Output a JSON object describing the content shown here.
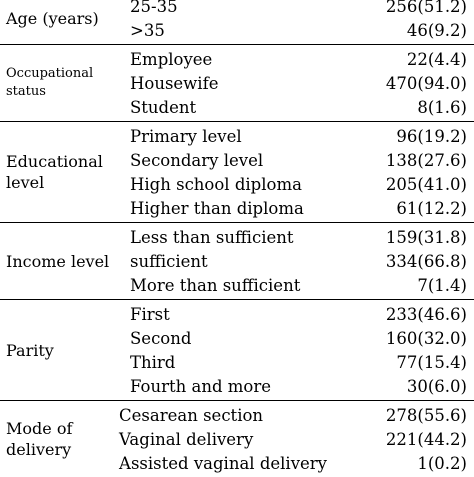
{
  "groups": [
    {
      "category": "Age (years)",
      "rows": [
        {
          "label": "25-35",
          "value": "256(51.2)"
        },
        {
          "label": ">35",
          "value": "46(9.2)"
        }
      ]
    },
    {
      "category": "Occupational status",
      "rows": [
        {
          "label": "Employee",
          "value": "22(4.4)"
        },
        {
          "label": "Housewife",
          "value": "470(94.0)"
        },
        {
          "label": "Student",
          "value": "8(1.6)"
        }
      ]
    },
    {
      "category": "Educational level",
      "rows": [
        {
          "label": "Primary level",
          "value": "96(19.2)"
        },
        {
          "label": "Secondary level",
          "value": "138(27.6)"
        },
        {
          "label": "High school diploma",
          "value": "205(41.0)"
        },
        {
          "label": "Higher than diploma",
          "value": "61(12.2)"
        }
      ]
    },
    {
      "category": "Income level",
      "rows": [
        {
          "label": "Less than sufficient",
          "value": "159(31.8)"
        },
        {
          "label": "sufficient",
          "value": "334(66.8)"
        },
        {
          "label": "More than sufficient",
          "value": "7(1.4)"
        }
      ]
    },
    {
      "category": "Parity",
      "rows": [
        {
          "label": "First",
          "value": "233(46.6)"
        },
        {
          "label": "Second",
          "value": "160(32.0)"
        },
        {
          "label": "Third",
          "value": "77(15.4)"
        },
        {
          "label": "Fourth and more",
          "value": "30(6.0)"
        }
      ]
    },
    {
      "category": "Mode of delivery",
      "rows": [
        {
          "label": "Cesarean section",
          "value": "278(55.6)"
        },
        {
          "label": "Vaginal delivery",
          "value": "221(44.2)"
        },
        {
          "label": "Assisted vaginal delivery",
          "value": "1(0.2)"
        }
      ]
    }
  ]
}
